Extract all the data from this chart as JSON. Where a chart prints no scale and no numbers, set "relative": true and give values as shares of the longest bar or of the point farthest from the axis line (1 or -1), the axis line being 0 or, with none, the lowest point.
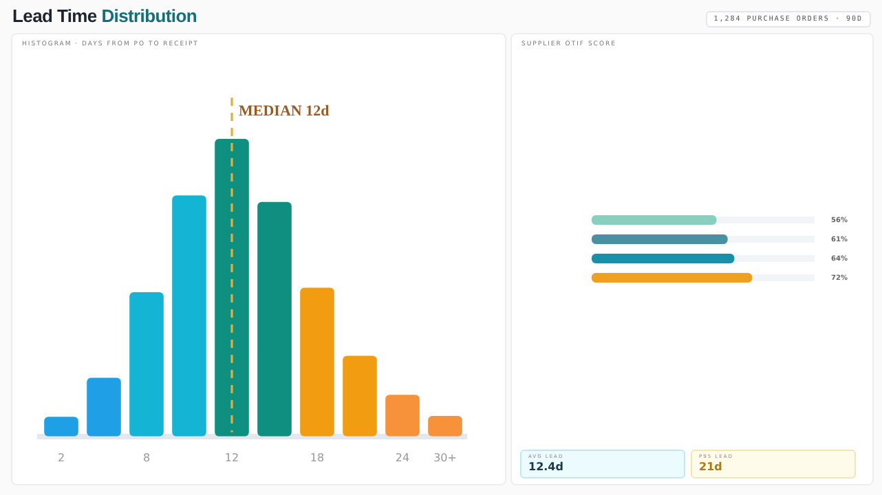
{
  "chart_data": [
    {
      "type": "bar",
      "title": "Lead Time Distribution",
      "subtitle": "HISTOGRAM · DAYS FROM PO TO RECEIPT",
      "annotations": [
        "1,284 PURCHASE ORDERS · 90D"
      ],
      "categories": [
        "2",
        null,
        "8",
        null,
        "12",
        null,
        "18",
        null,
        "24",
        "30+"
      ],
      "values": [
        0.066,
        0.197,
        0.485,
        0.81,
        1,
        0.788,
        0.5,
        0.271,
        0.14,
        0.069
      ],
      "colors": [
        "#1fa0e6",
        "#1fa0e6",
        "#14b4d4",
        "#14b4d4",
        "#0f8f80",
        "#0f8f80",
        "#f29c12",
        "#f29c12",
        "#f7923a",
        "#f7923a"
      ],
      "relative": true,
      "ref_lines": [
        {
          "axis": "x",
          "value": "12",
          "label": "MEDIAN 12d",
          "color": "#e0b040",
          "line_style": "dashed"
        }
      ]
    },
    {
      "type": "bar",
      "orientation": "horizontal",
      "title": "SUPPLIER OTIF SCORE",
      "categories": [
        null,
        null,
        null,
        null
      ],
      "values": [
        56,
        61,
        64,
        72
      ],
      "colors": [
        "#88cfc0",
        "#4a90a4",
        "#1a8fa8",
        "#f0a020"
      ],
      "value_labels": [
        "56%",
        "61%",
        "64%",
        "72%"
      ],
      "xlim": [
        0,
        100
      ],
      "tick_labels": false
    },
    {
      "type": "other",
      "annotations": [
        "AVG LEAD",
        "12.4d",
        "P95 LEAD",
        "21d"
      ]
    }
  ]
}
